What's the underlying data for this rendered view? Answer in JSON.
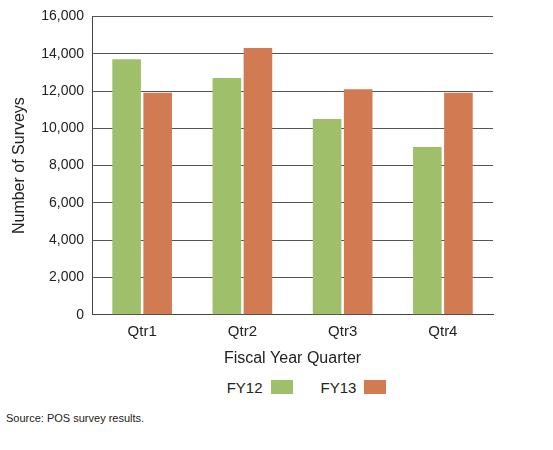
{
  "chart_data": {
    "type": "bar",
    "x_label": "Fiscal Year Quarter",
    "y_label": "Number of Surveys",
    "categories": [
      "Qtr1",
      "Qtr2",
      "Qtr3",
      "Qtr4"
    ],
    "series": [
      {
        "name": "FY12",
        "color": "#9fbf6b",
        "values": [
          13700,
          12700,
          10500,
          9000
        ]
      },
      {
        "name": "FY13",
        "color": "#d27a52",
        "values": [
          11900,
          14300,
          12100,
          11900
        ]
      }
    ],
    "ylim": [
      0,
      16000
    ],
    "yticks": [
      0,
      {
        "value": 2000,
        "label": "2,000"
      },
      {
        "value": 4000,
        "label": "4,000"
      },
      {
        "value": 6000,
        "label": "6,000"
      },
      {
        "value": 8000,
        "label": "8,000"
      },
      {
        "value": 10000,
        "label": "10,000"
      },
      {
        "value": 12000,
        "label": "12,000"
      },
      {
        "value": 14000,
        "label": "14,000"
      },
      {
        "value": 16000,
        "label": "16,000"
      }
    ],
    "grid": true,
    "legend": "bottom",
    "source": "Source: POS survey results."
  }
}
